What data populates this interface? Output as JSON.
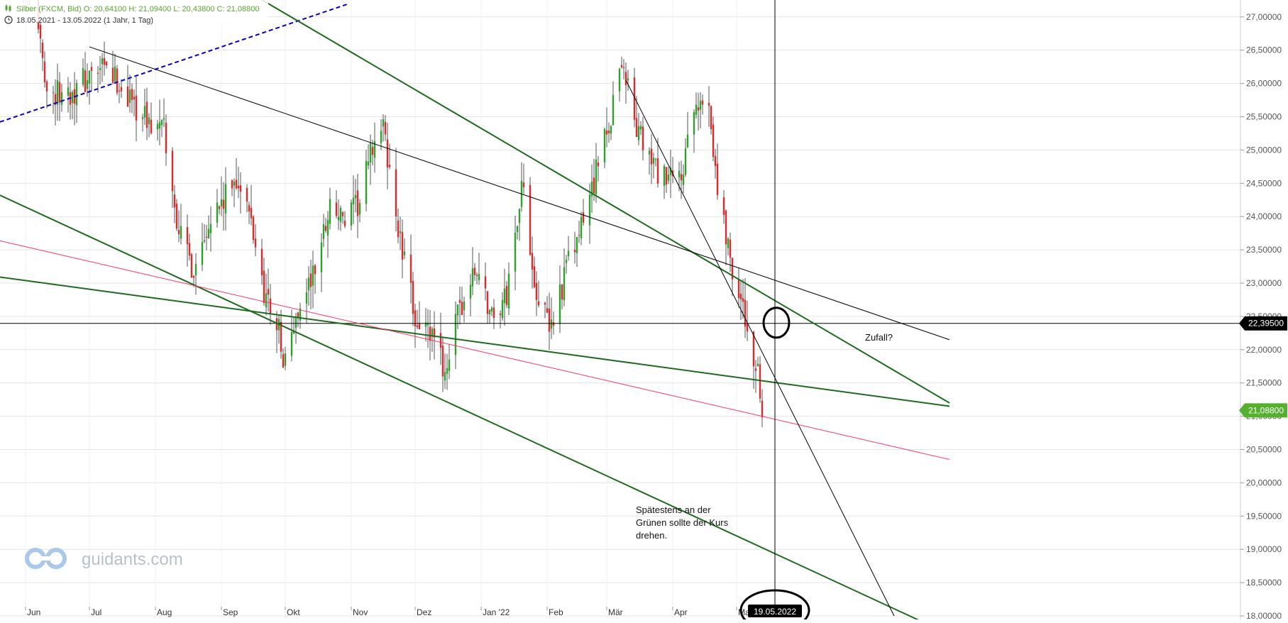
{
  "chart_data": {
    "type": "candlestick",
    "instrument_line": "Silber (FXCM, Bid)  O: 20,64100  H: 21,09400  L: 20,43800  C: 21,08800",
    "range_line": "18.05.2021 - 13.05.2022   (1 Jahr, 1 Tag)",
    "y_ticks": [
      "18,00000",
      "18,50000",
      "19,00000",
      "19,50000",
      "20,00000",
      "20,50000",
      "21,00000",
      "21,50000",
      "22,00000",
      "22,50000",
      "23,00000",
      "23,50000",
      "24,00000",
      "24,50000",
      "25,00000",
      "25,50000",
      "26,00000",
      "26,50000",
      "27,00000"
    ],
    "x_ticks": [
      "Jun",
      "Jul",
      "Aug",
      "Sep",
      "Okt",
      "Nov",
      "Dez",
      "Jan '22",
      "Feb",
      "Mär",
      "Apr",
      "Mai"
    ],
    "ylim": [
      18.0,
      27.1
    ],
    "price_path": [
      [
        "2021-05-24",
        28.0
      ],
      [
        "2021-06-05",
        27.2
      ],
      [
        "2021-06-12",
        25.8
      ],
      [
        "2021-06-24",
        25.9
      ],
      [
        "2021-07-01",
        26.1
      ],
      [
        "2021-07-08",
        26.2
      ],
      [
        "2021-07-15",
        26.0
      ],
      [
        "2021-07-22",
        25.7
      ],
      [
        "2021-07-29",
        25.4
      ],
      [
        "2021-08-05",
        25.3
      ],
      [
        "2021-08-09",
        24.3
      ],
      [
        "2021-08-13",
        23.7
      ],
      [
        "2021-08-19",
        23.2
      ],
      [
        "2021-08-26",
        24.0
      ],
      [
        "2021-09-02",
        24.2
      ],
      [
        "2021-09-08",
        24.6
      ],
      [
        "2021-09-15",
        23.9
      ],
      [
        "2021-09-21",
        22.9
      ],
      [
        "2021-09-28",
        22.3
      ],
      [
        "2021-09-30",
        21.7
      ],
      [
        "2021-10-07",
        22.6
      ],
      [
        "2021-10-15",
        23.2
      ],
      [
        "2021-10-22",
        24.2
      ],
      [
        "2021-10-29",
        23.9
      ],
      [
        "2021-11-05",
        24.2
      ],
      [
        "2021-11-12",
        25.2
      ],
      [
        "2021-11-16",
        25.3
      ],
      [
        "2021-11-24",
        23.6
      ],
      [
        "2021-12-01",
        22.5
      ],
      [
        "2021-12-08",
        22.2
      ],
      [
        "2021-12-15",
        21.7
      ],
      [
        "2021-12-22",
        22.6
      ],
      [
        "2021-12-30",
        23.2
      ],
      [
        "2022-01-06",
        22.5
      ],
      [
        "2022-01-13",
        22.8
      ],
      [
        "2022-01-20",
        24.5
      ],
      [
        "2022-01-27",
        22.9
      ],
      [
        "2022-02-02",
        22.3
      ],
      [
        "2022-02-10",
        23.2
      ],
      [
        "2022-02-17",
        23.8
      ],
      [
        "2022-02-24",
        24.7
      ],
      [
        "2022-03-01",
        25.2
      ],
      [
        "2022-03-08",
        26.4
      ],
      [
        "2022-03-15",
        25.3
      ],
      [
        "2022-03-22",
        24.8
      ],
      [
        "2022-03-29",
        24.5
      ],
      [
        "2022-04-05",
        24.6
      ],
      [
        "2022-04-12",
        25.6
      ],
      [
        "2022-04-18",
        25.8
      ],
      [
        "2022-04-22",
        24.4
      ],
      [
        "2022-04-28",
        23.4
      ],
      [
        "2022-05-05",
        22.4
      ],
      [
        "2022-05-09",
        21.9
      ],
      [
        "2022-05-12",
        21.4
      ],
      [
        "2022-05-13",
        20.8
      ]
    ],
    "trendlines": [
      {
        "color": "#0000cc",
        "dashed": true,
        "width": 2,
        "p1": [
          "2021-05-18",
          25.4
        ],
        "p2": [
          "2021-10-31",
          27.2
        ]
      },
      {
        "color": "#1e6b1e",
        "dashed": false,
        "width": 2,
        "p1": [
          "2021-09-07",
          27.5
        ],
        "p2": [
          "2022-08-09",
          21.2
        ]
      },
      {
        "color": "#1e6b1e",
        "dashed": false,
        "width": 2,
        "p1": [
          "2021-05-18",
          24.35
        ],
        "p2": [
          "2022-07-28",
          17.9
        ]
      },
      {
        "color": "#1e6b1e",
        "dashed": false,
        "width": 2,
        "p1": [
          "2021-05-18",
          23.1
        ],
        "p2": [
          "2022-08-09",
          21.15
        ]
      },
      {
        "color": "#ff3366",
        "dashed": false,
        "width": 1,
        "p1": [
          "2021-05-18",
          23.65
        ],
        "p2": [
          "2022-08-09",
          20.35
        ]
      },
      {
        "color": "#000000",
        "dashed": false,
        "width": 1,
        "p1": [
          "2021-07-01",
          26.55
        ],
        "p2": [
          "2022-08-09",
          22.15
        ]
      },
      {
        "color": "#000000",
        "dashed": false,
        "width": 1,
        "p1": [
          "2022-03-10",
          26.05
        ],
        "p2": [
          "2022-07-14",
          18.0
        ]
      }
    ],
    "horizontal_line": {
      "value": 22.395,
      "label": "22,39500"
    },
    "last_price": {
      "value": 21.088,
      "label": "21,08800"
    },
    "crosshair": {
      "date": "2022-05-19",
      "label": "19.05.2022"
    },
    "circle_marker": {
      "date": "2022-05-19",
      "value": 22.395
    },
    "annotations": [
      "Zufall?",
      "Spätestens an der",
      "Grünen sollte der Kurs",
      "drehen."
    ],
    "watermark": "guidants.com",
    "colors": {
      "up": "#2e9e2e",
      "down": "#d92b2b",
      "grid": "#e4e4e4",
      "header_green": "#55a630"
    }
  }
}
